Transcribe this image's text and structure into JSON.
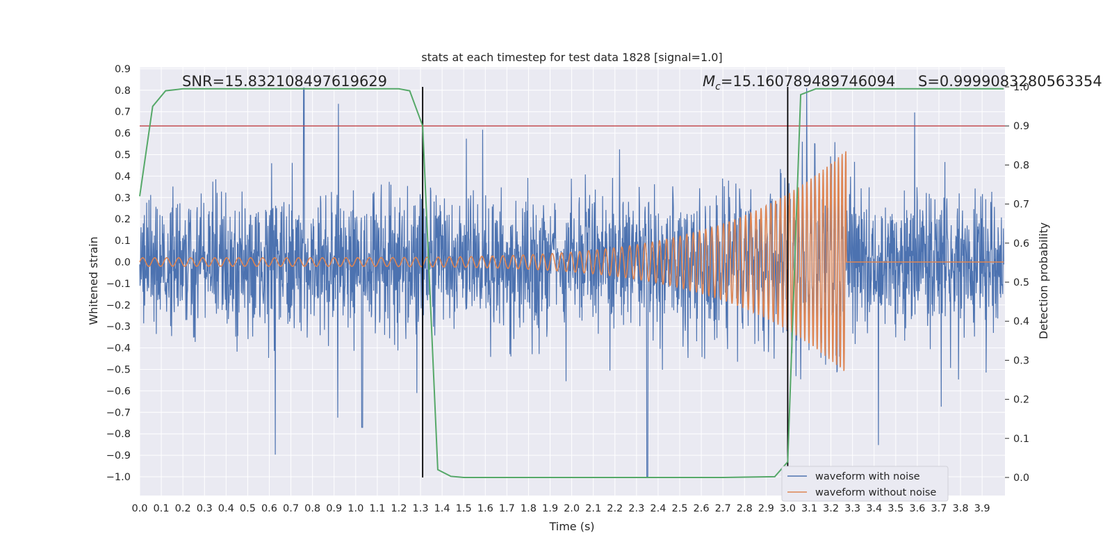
{
  "chart_data": {
    "type": "line",
    "title": "stats at each timestep for test data 1828 [signal=1.0]",
    "xlabel": "Time (s)",
    "ylabel": "Whitened strain",
    "y2label": "Detection probability",
    "xlim": [
      0.0,
      4.0
    ],
    "ylim": [
      -1.09,
      0.91
    ],
    "y2lim": [
      -0.05,
      1.05
    ],
    "xticks": [
      "0.0",
      "0.1",
      "0.2",
      "0.3",
      "0.4",
      "0.5",
      "0.6",
      "0.7",
      "0.8",
      "0.9",
      "1.0",
      "1.1",
      "1.2",
      "1.3",
      "1.4",
      "1.5",
      "1.6",
      "1.7",
      "1.8",
      "1.9",
      "2.0",
      "2.1",
      "2.2",
      "2.3",
      "2.4",
      "2.5",
      "2.6",
      "2.7",
      "2.8",
      "2.9",
      "3.0",
      "3.1",
      "3.2",
      "3.3",
      "3.4",
      "3.5",
      "3.6",
      "3.7",
      "3.8",
      "3.9"
    ],
    "yticks": [
      "0.9",
      "0.8",
      "0.7",
      "0.6",
      "0.5",
      "0.4",
      "0.3",
      "0.2",
      "0.1",
      "0.0",
      "−0.1",
      "−0.2",
      "−0.3",
      "−0.4",
      "−0.5",
      "−0.6",
      "−0.7",
      "−0.8",
      "−0.9",
      "−1.0"
    ],
    "y2ticks": [
      "1.0",
      "0.9",
      "0.8",
      "0.7",
      "0.6",
      "0.5",
      "0.4",
      "0.3",
      "0.2",
      "0.1",
      "0.0"
    ],
    "grid": true,
    "legend_position": "lower-right",
    "annotations": {
      "snr": "SNR=15.832108497619629",
      "mc_symbol": "M",
      "mc_subscript": "c",
      "mc_value": "=15.160789489746094",
      "s": "S=0.9999083280563354"
    },
    "threshold_line": {
      "y2": 0.9,
      "color": "#c44e52"
    },
    "vertical_lines": [
      1.31,
      3.0
    ],
    "series": [
      {
        "name": "waveform with noise",
        "color": "#4c72b0",
        "axis": "left",
        "description_values": {
          "typical_amplitude": 0.3,
          "max": 0.81,
          "min": -1.0,
          "peak_times": [
            0.76,
            2.35
          ]
        }
      },
      {
        "name": "waveform without noise",
        "color": "#dd8452",
        "axis": "left",
        "chirp": {
          "start_amplitude": 0.02,
          "peak_amplitude": 0.52,
          "end_time": 3.27,
          "start_freq": 18,
          "end_freq": 60
        }
      },
      {
        "name": "detection probability",
        "color": "#55a868",
        "axis": "right",
        "x": [
          0.0,
          0.06,
          0.12,
          0.2,
          0.5,
          0.8,
          1.0,
          1.2,
          1.25,
          1.31,
          1.38,
          1.44,
          1.5,
          1.8,
          2.1,
          2.4,
          2.7,
          2.94,
          3.0,
          3.06,
          3.13,
          3.3,
          3.6,
          4.0
        ],
        "y": [
          0.72,
          0.95,
          0.99,
          0.995,
          0.995,
          0.995,
          0.995,
          0.995,
          0.99,
          0.9,
          0.02,
          0.003,
          0.0,
          0.0,
          0.0,
          0.0,
          0.0,
          0.002,
          0.04,
          0.98,
          0.995,
          0.995,
          0.995,
          0.995
        ]
      }
    ]
  }
}
